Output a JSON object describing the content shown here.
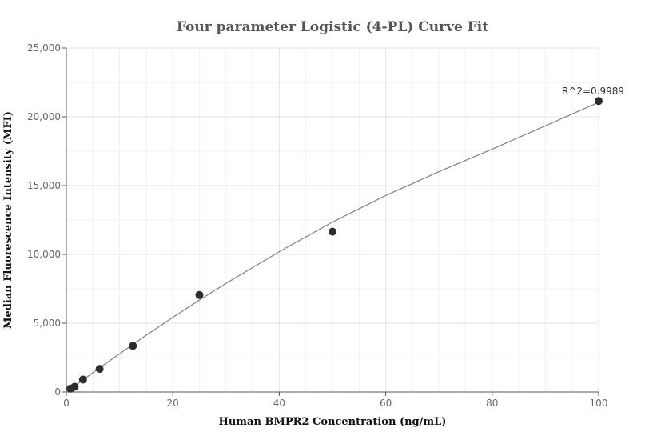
{
  "chart_data": {
    "type": "scatter",
    "title": "Four parameter Logistic (4-PL) Curve Fit",
    "xlabel": "Human BMPR2 Concentration (ng/mL)",
    "ylabel": "Median Fluorescence Intensity (MFI)",
    "xlim": [
      0,
      100
    ],
    "ylim": [
      0,
      25000
    ],
    "x_ticks": [
      0,
      20,
      40,
      60,
      80,
      100
    ],
    "x_tick_labels": [
      "0",
      "20",
      "40",
      "60",
      "80",
      "100"
    ],
    "y_ticks": [
      0,
      5000,
      10000,
      15000,
      20000,
      25000
    ],
    "y_tick_labels": [
      "0",
      "5,000",
      "10,000",
      "15,000",
      "20,000",
      "25,000"
    ],
    "grid": true,
    "series": [
      {
        "x": [
          0.78,
          1.56,
          3.13,
          6.25,
          12.5,
          25,
          50,
          100
        ],
        "y": [
          250,
          380,
          900,
          1680,
          3350,
          7050,
          11650,
          21150
        ]
      }
    ],
    "fit_curve": {
      "x": [
        0,
        2,
        5,
        10,
        15,
        20,
        25,
        30,
        40,
        50,
        60,
        70,
        80,
        90,
        100
      ],
      "y": [
        0,
        560,
        1400,
        2780,
        4130,
        5420,
        6680,
        7890,
        10200,
        12350,
        14280,
        16010,
        17650,
        19350,
        21050
      ]
    },
    "annotation": {
      "text": "R^2=0.9989",
      "x": 100,
      "y": 21150
    }
  }
}
